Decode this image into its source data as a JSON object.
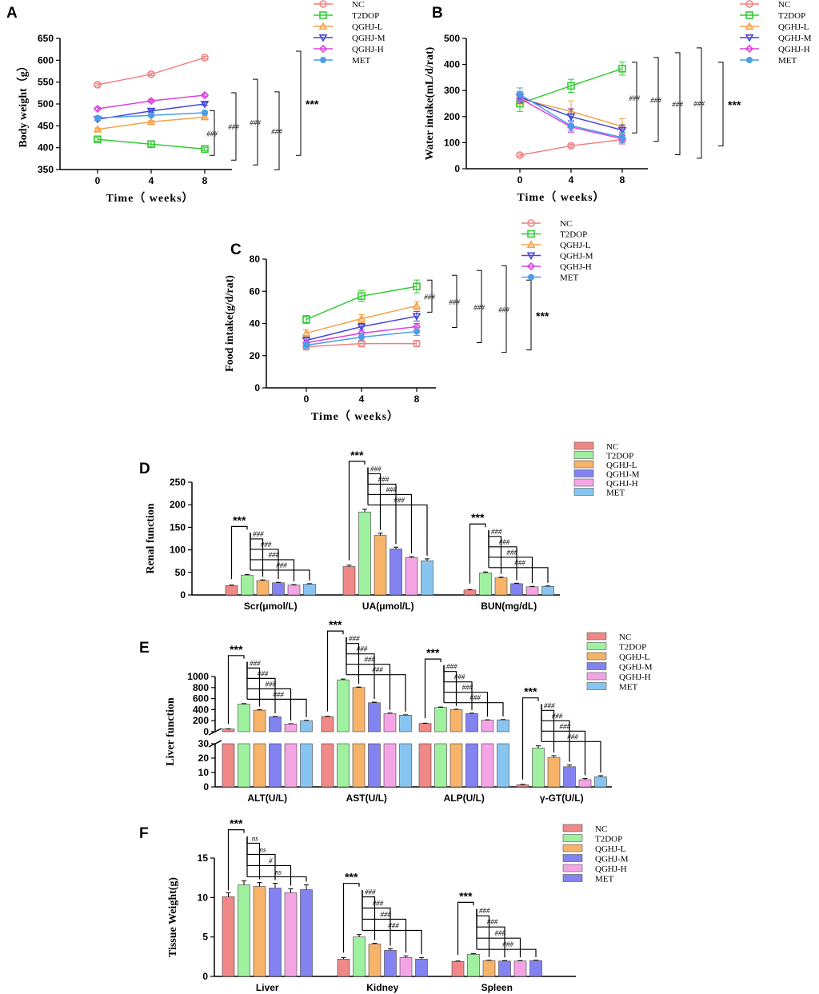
{
  "panels": {
    "A": {
      "type": "line",
      "letter": "A",
      "ylabel": "Body weight（g）",
      "xlabel": "Time（ weeks）",
      "x": [
        0,
        4,
        8
      ],
      "xticks": [
        "0",
        "4",
        "8"
      ],
      "ylim": [
        350,
        650
      ],
      "yticks": [
        350,
        400,
        450,
        500,
        550,
        600,
        650
      ],
      "series": [
        {
          "name": "NC",
          "values": [
            544,
            568,
            606
          ],
          "err": [
            3,
            3,
            3
          ]
        },
        {
          "name": "T2DOP",
          "values": [
            419,
            408,
            397
          ],
          "err": [
            4,
            6,
            4
          ]
        },
        {
          "name": "QGHJ-L",
          "values": [
            442,
            459,
            470
          ],
          "err": [
            3,
            3,
            3
          ]
        },
        {
          "name": "QGHJ-M",
          "values": [
            465,
            484,
            500
          ],
          "err": [
            3,
            3,
            3
          ]
        },
        {
          "name": "QGHJ-H",
          "values": [
            489,
            507,
            520
          ],
          "err": [
            3,
            3,
            3
          ]
        },
        {
          "name": "MET",
          "values": [
            468,
            474,
            480
          ],
          "err": [
            3,
            3,
            3
          ]
        }
      ],
      "sig": [
        "###",
        "###",
        "###",
        "###",
        "***"
      ]
    },
    "B": {
      "type": "line",
      "letter": "B",
      "ylabel": "Water intake(mL/d/rat)",
      "xlabel": "Time（ weeks）",
      "x": [
        0,
        4,
        8
      ],
      "xticks": [
        "0",
        "4",
        "8"
      ],
      "ylim": [
        0,
        500
      ],
      "yticks": [
        0,
        100,
        200,
        300,
        400,
        500
      ],
      "series": [
        {
          "name": "NC",
          "values": [
            52,
            88,
            112
          ],
          "err": [
            4,
            6,
            10
          ]
        },
        {
          "name": "T2DOP",
          "values": [
            250,
            318,
            384
          ],
          "err": [
            30,
            25,
            25
          ]
        },
        {
          "name": "QGHJ-L",
          "values": [
            268,
            220,
            162
          ],
          "err": [
            20,
            40,
            30
          ]
        },
        {
          "name": "QGHJ-M",
          "values": [
            275,
            200,
            148
          ],
          "err": [
            20,
            30,
            20
          ]
        },
        {
          "name": "QGHJ-H",
          "values": [
            270,
            160,
            115
          ],
          "err": [
            20,
            20,
            20
          ]
        },
        {
          "name": "MET",
          "values": [
            285,
            165,
            120
          ],
          "err": [
            25,
            20,
            20
          ]
        }
      ],
      "sig": [
        "###",
        "###",
        "###",
        "###",
        "***"
      ]
    },
    "C": {
      "type": "line",
      "letter": "C",
      "ylabel": "Food intake(g/d/rat)",
      "xlabel": "Time（ weeks）",
      "x": [
        0,
        4,
        8
      ],
      "xticks": [
        "0",
        "4",
        "8"
      ],
      "ylim": [
        0,
        80
      ],
      "yticks": [
        0,
        20,
        40,
        60,
        80
      ],
      "series": [
        {
          "name": "NC",
          "values": [
            25.5,
            27.5,
            27.5
          ],
          "err": [
            2,
            2,
            2
          ]
        },
        {
          "name": "T2DOP",
          "values": [
            42.5,
            57,
            63
          ],
          "err": [
            2.5,
            3.5,
            4
          ]
        },
        {
          "name": "QGHJ-L",
          "values": [
            34,
            43,
            51
          ],
          "err": [
            2,
            2.5,
            2.5
          ]
        },
        {
          "name": "QGHJ-M",
          "values": [
            29.5,
            38,
            44.5
          ],
          "err": [
            2,
            2,
            3
          ]
        },
        {
          "name": "QGHJ-H",
          "values": [
            28,
            34,
            38
          ],
          "err": [
            2,
            2,
            2
          ]
        },
        {
          "name": "MET",
          "values": [
            26.5,
            31.5,
            35
          ],
          "err": [
            2,
            2.5,
            2.5
          ]
        }
      ],
      "sig": [
        "###",
        "###",
        "###",
        "###",
        "***"
      ]
    },
    "D": {
      "type": "bar",
      "letter": "D",
      "ylabel": "Renal function",
      "categories": [
        "Scr(μmol/L)",
        "UA(μmol/L)",
        "BUN(mg/dL)"
      ],
      "ylim": [
        0,
        250
      ],
      "yticks": [
        0,
        50,
        100,
        150,
        200,
        250
      ],
      "groups": [
        "NC",
        "T2DOP",
        "QGHJ-L",
        "QGHJ-M",
        "QGHJ-H",
        "MET"
      ],
      "values": [
        [
          21,
          44,
          32,
          27,
          22,
          24
        ],
        [
          63,
          184,
          132,
          102,
          83,
          76
        ],
        [
          11,
          49,
          38,
          25,
          18,
          19
        ]
      ],
      "err": [
        [
          1,
          1.5,
          1.5,
          1,
          1,
          1
        ],
        [
          3,
          6,
          5,
          4,
          2,
          4
        ],
        [
          1,
          2,
          1.5,
          1,
          1,
          1
        ]
      ],
      "sig": [
        [
          "***",
          "###",
          "###",
          "###",
          "###"
        ],
        [
          "***",
          "###",
          "###",
          "###",
          "###"
        ],
        [
          "***",
          "###",
          "###",
          "###",
          "###"
        ]
      ]
    },
    "E": {
      "type": "bar-broken",
      "letter": "E",
      "ylabel": "Liver function",
      "categories": [
        "ALT(U/L)",
        "AST(U/L)",
        "ALP(U/L)",
        "γ-GT(U/L)"
      ],
      "ylim_low": [
        0,
        30
      ],
      "ylim_high": [
        0,
        1000
      ],
      "yticks_low": [
        0,
        10,
        20,
        30
      ],
      "yticks_high": [
        0,
        200,
        400,
        600,
        800,
        1000
      ],
      "groups": [
        "NC",
        "T2DOP",
        "QGHJ-L",
        "QGHJ-M",
        "QGHJ-H",
        "MET"
      ],
      "values": [
        [
          50,
          500,
          390,
          270,
          140,
          200
        ],
        [
          275,
          940,
          800,
          525,
          330,
          300
        ],
        [
          150,
          440,
          400,
          330,
          210,
          215
        ],
        [
          1.5,
          27,
          20.5,
          14,
          5,
          7
        ]
      ],
      "err": [
        [
          3,
          10,
          8,
          6,
          5,
          6
        ],
        [
          6,
          15,
          10,
          10,
          8,
          6
        ],
        [
          5,
          8,
          8,
          6,
          6,
          6
        ],
        [
          0.3,
          1.5,
          1.2,
          1.2,
          0.8,
          0.8
        ]
      ],
      "sig": [
        [
          "***",
          "###",
          "###",
          "###",
          "###"
        ],
        [
          "***",
          "###",
          "###",
          "###",
          "###"
        ],
        [
          "***",
          "###",
          "###",
          "###",
          "###"
        ],
        [
          "***",
          "###",
          "###",
          "###",
          "###"
        ]
      ]
    },
    "F": {
      "type": "bar",
      "letter": "F",
      "ylabel": "Tissue Weight(g)",
      "categories": [
        "Liver",
        "Kidney",
        "Spleen"
      ],
      "ylim": [
        0,
        15
      ],
      "yticks": [
        0,
        5,
        10,
        15
      ],
      "groups": [
        "NC",
        "T2DOP",
        "QGHJ-L",
        "QGHJ-M",
        "QGHJ-H",
        "MET"
      ],
      "values": [
        [
          10.1,
          11.6,
          11.4,
          11.2,
          10.6,
          11.0
        ],
        [
          2.2,
          5.0,
          4.1,
          3.3,
          2.4,
          2.2
        ],
        [
          1.9,
          2.8,
          2.0,
          1.95,
          1.95,
          2.0
        ]
      ],
      "err": [
        [
          0.5,
          0.5,
          0.5,
          0.6,
          0.5,
          0.6
        ],
        [
          0.2,
          0.3,
          0.1,
          0.2,
          0.2,
          0.2
        ],
        [
          0.05,
          0.1,
          0.05,
          0.05,
          0.05,
          0.05
        ]
      ],
      "sig": [
        [
          "***",
          "ns",
          "ns",
          "#",
          "ns"
        ],
        [
          "***",
          "###",
          "###",
          "###",
          "###"
        ],
        [
          "***",
          "###",
          "###",
          "###",
          "###"
        ]
      ]
    }
  },
  "colors": {
    "line": {
      "NC": "#f08080",
      "T2DOP": "#33cc33",
      "QGHJ-L": "#f4a24a",
      "QGHJ-M": "#4545dd",
      "QGHJ-H": "#e040e0",
      "MET": "#4a9ee8"
    },
    "bar": {
      "NC": "#f08888",
      "T2DOP": "#9ff09f",
      "QGHJ-L": "#f7b36a",
      "QGHJ-M": "#8282f0",
      "QGHJ-H": "#f4a4e4",
      "MET": "#88c4f0"
    },
    "barF": {
      "MET": "#8282f0"
    }
  },
  "legend_labels": {
    "A": [
      "NC",
      "T2DOP",
      "QGHJ-L",
      "QGHJ-M",
      "QGHJ-H",
      "MET"
    ],
    "B": [
      "NC",
      "T2DOP",
      "QGHJ-L",
      "QGHJ-M",
      "QGHJ-H",
      "MET"
    ],
    "C": [
      "NC",
      "T2DOP",
      "QGHJ-L",
      "QGHJ-M",
      "QGHJ-H",
      "MET"
    ],
    "D": [
      "NC",
      "T2DOP",
      "QGHJ-L",
      "QGHJ-M",
      "QGHJ-H",
      "MET"
    ],
    "E": [
      "NC",
      "T2DOP",
      "QGHJ-L",
      "QGHJ-M",
      "QGHJ-H",
      "MET"
    ],
    "F": [
      "NC",
      "T2DOP",
      "QGHJ-L",
      "QGHJ-M",
      "QGHJ-H",
      "MET"
    ]
  }
}
